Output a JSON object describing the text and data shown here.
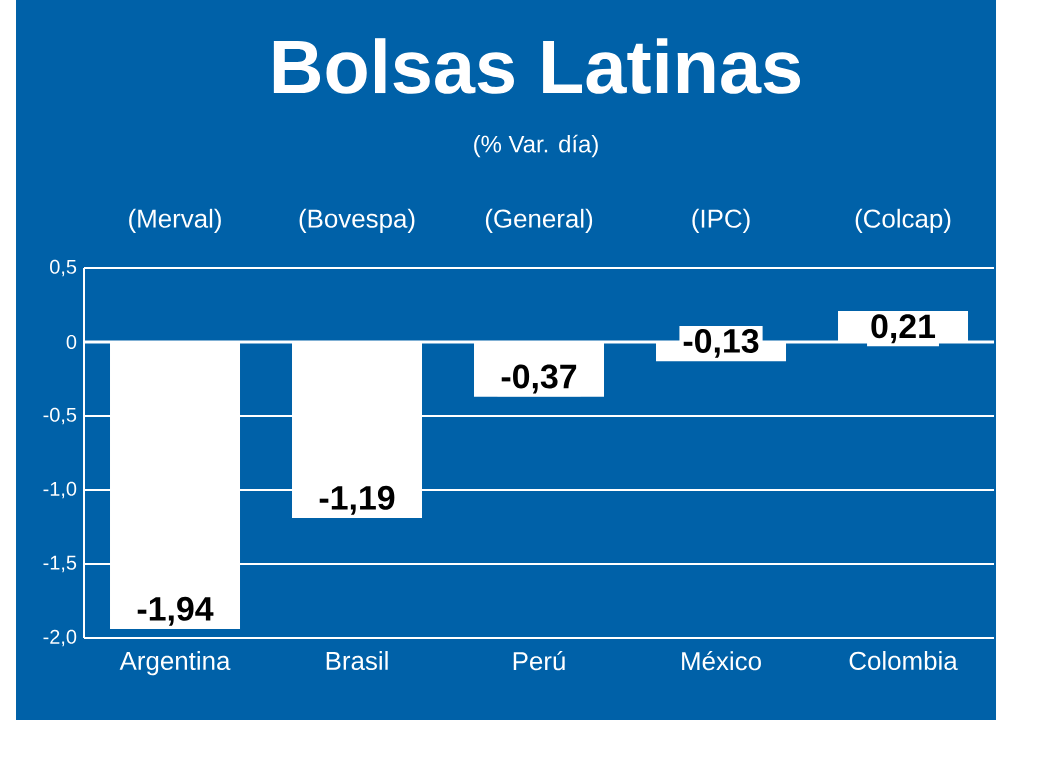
{
  "chart_data": {
    "type": "bar",
    "title": "Bolsas Latinas",
    "subtitle": "(% Var. día)",
    "categories": [
      "Argentina",
      "Brasil",
      "Perú",
      "México",
      "Colombia"
    ],
    "values": [
      -1.94,
      -1.19,
      -0.37,
      -0.13,
      0.21
    ],
    "value_labels": [
      "-1,94",
      "-1,19",
      "-0,37",
      "-0,13",
      "0,21"
    ],
    "color": "#ffffff",
    "ylim": [
      -2.0,
      0.5
    ],
    "yticks": [
      {
        "value": -2.0,
        "label": "-2,0"
      },
      {
        "value": -1.5,
        "label": "-1,5"
      },
      {
        "value": -1.0,
        "label": "-1,0"
      },
      {
        "value": -0.5,
        "label": "-0,5"
      },
      0,
      {
        "value": 0.5,
        "label": "0,5"
      }
    ],
    "grid": "y",
    "annotations": [
      "(Merval)",
      "(Bovespa)",
      "(General)",
      "(IPC)",
      "(Colcap)"
    ]
  }
}
